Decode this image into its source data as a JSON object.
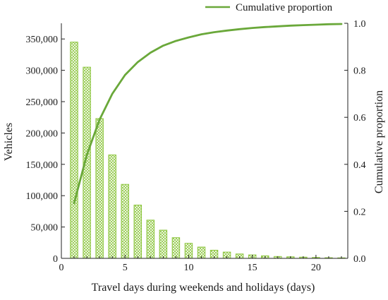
{
  "chart_data": {
    "type": "bar",
    "xlabel": "Travel days during weekends and holidays (days)",
    "ylabel": "Vehicles",
    "y2label": "Cumulative proportion",
    "xlim": [
      0,
      22.5
    ],
    "ylim": [
      0,
      375000
    ],
    "y2lim": [
      0,
      1.0
    ],
    "x_ticks": [
      0,
      5,
      10,
      15,
      20
    ],
    "y_ticks": [
      0,
      50000,
      100000,
      150000,
      200000,
      250000,
      300000,
      350000
    ],
    "y_tick_labels": [
      "0",
      "50,000",
      "100,000",
      "150,000",
      "200,000",
      "250,000",
      "300,000",
      "350,000"
    ],
    "y2_ticks": [
      0.0,
      0.2,
      0.4,
      0.6,
      0.8,
      1.0
    ],
    "y2_tick_labels": [
      "0.0",
      "0.2",
      "0.4",
      "0.6",
      "0.8",
      "1.0"
    ],
    "x": [
      1,
      2,
      3,
      4,
      5,
      6,
      7,
      8,
      9,
      10,
      11,
      12,
      13,
      14,
      15,
      16,
      17,
      18,
      19,
      20,
      21,
      22
    ],
    "series": [
      {
        "kind": "bar",
        "values": [
          345000,
          305000,
          223000,
          165000,
          118000,
          85000,
          61000,
          45000,
          33000,
          24000,
          18000,
          13000,
          10000,
          7000,
          5500,
          4000,
          3000,
          2500,
          2000,
          1500,
          1000,
          800
        ]
      },
      {
        "name": "Cumulative proportion",
        "kind": "line",
        "axis": "right",
        "values": [
          0.235,
          0.44,
          0.59,
          0.7,
          0.78,
          0.835,
          0.875,
          0.905,
          0.925,
          0.94,
          0.953,
          0.962,
          0.969,
          0.975,
          0.98,
          0.984,
          0.987,
          0.99,
          0.992,
          0.994,
          0.996,
          0.997
        ]
      }
    ],
    "legend": {
      "position": "top-right",
      "entries": [
        "Cumulative proportion"
      ]
    },
    "grid": false,
    "colors": {
      "bar": "#8dc63f",
      "line": "#6aa83a",
      "axis": "#222222"
    }
  }
}
